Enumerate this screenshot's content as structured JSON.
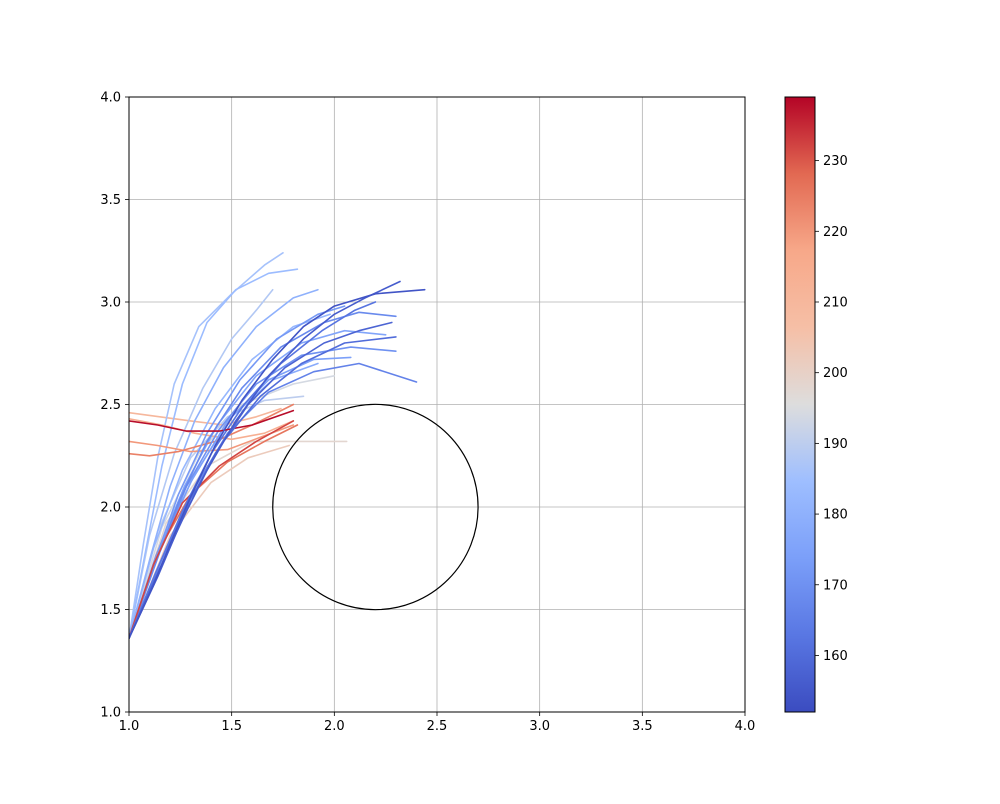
{
  "chart_data": {
    "type": "line",
    "title": "",
    "xlabel": "",
    "ylabel": "",
    "xlim": [
      1.0,
      4.0
    ],
    "ylim": [
      1.0,
      4.0
    ],
    "grid": true,
    "x_ticks": [
      "1.0",
      "1.5",
      "2.0",
      "2.5",
      "3.0",
      "3.5",
      "4.0"
    ],
    "y_ticks": [
      "1.0",
      "1.5",
      "2.0",
      "2.5",
      "3.0",
      "3.5",
      "4.0"
    ],
    "colorbar": {
      "colormap": "coolwarm",
      "range": [
        152,
        239
      ],
      "ticks": [
        "160",
        "170",
        "180",
        "190",
        "200",
        "210",
        "220",
        "230"
      ],
      "low_color": "#3b4cc0",
      "mid_color": "#dddddd",
      "high_color": "#b40426"
    },
    "obstacle": {
      "shape": "circle",
      "center": [
        2.2,
        2.0
      ],
      "radius": 0.5,
      "color": "#000000"
    },
    "series": [
      {
        "value": 154,
        "points": [
          [
            1.0,
            1.36
          ],
          [
            1.12,
            1.62
          ],
          [
            1.2,
            1.82
          ],
          [
            1.3,
            2.05
          ],
          [
            1.42,
            2.3
          ],
          [
            1.55,
            2.52
          ],
          [
            1.7,
            2.72
          ],
          [
            1.85,
            2.88
          ],
          [
            2.0,
            2.98
          ],
          [
            2.2,
            3.04
          ],
          [
            2.44,
            3.06
          ]
        ]
      },
      {
        "value": 156,
        "points": [
          [
            1.0,
            1.36
          ],
          [
            1.14,
            1.66
          ],
          [
            1.25,
            1.92
          ],
          [
            1.38,
            2.18
          ],
          [
            1.52,
            2.42
          ],
          [
            1.68,
            2.64
          ],
          [
            1.85,
            2.82
          ],
          [
            2.0,
            2.94
          ],
          [
            2.15,
            3.02
          ],
          [
            2.32,
            3.1
          ]
        ]
      },
      {
        "value": 158,
        "points": [
          [
            1.0,
            1.36
          ],
          [
            1.15,
            1.7
          ],
          [
            1.28,
            1.98
          ],
          [
            1.42,
            2.26
          ],
          [
            1.58,
            2.5
          ],
          [
            1.76,
            2.68
          ],
          [
            1.95,
            2.8
          ],
          [
            2.12,
            2.86
          ],
          [
            2.28,
            2.9
          ]
        ]
      },
      {
        "value": 160,
        "points": [
          [
            1.0,
            1.36
          ],
          [
            1.16,
            1.72
          ],
          [
            1.3,
            2.04
          ],
          [
            1.46,
            2.32
          ],
          [
            1.64,
            2.54
          ],
          [
            1.84,
            2.7
          ],
          [
            2.05,
            2.8
          ],
          [
            2.3,
            2.83
          ]
        ]
      },
      {
        "value": 162,
        "points": [
          [
            1.0,
            1.36
          ],
          [
            1.13,
            1.68
          ],
          [
            1.26,
            1.98
          ],
          [
            1.4,
            2.26
          ],
          [
            1.56,
            2.5
          ],
          [
            1.74,
            2.7
          ],
          [
            1.94,
            2.86
          ],
          [
            2.1,
            2.96
          ],
          [
            2.2,
            3.0
          ]
        ]
      },
      {
        "value": 166,
        "points": [
          [
            1.0,
            1.36
          ],
          [
            1.15,
            1.72
          ],
          [
            1.3,
            2.06
          ],
          [
            1.48,
            2.36
          ],
          [
            1.68,
            2.56
          ],
          [
            1.9,
            2.66
          ],
          [
            2.12,
            2.7
          ],
          [
            2.4,
            2.61
          ]
        ]
      },
      {
        "value": 168,
        "points": [
          [
            1.0,
            1.36
          ],
          [
            1.12,
            1.7
          ],
          [
            1.24,
            2.02
          ],
          [
            1.38,
            2.32
          ],
          [
            1.55,
            2.58
          ],
          [
            1.74,
            2.78
          ],
          [
            1.95,
            2.9
          ],
          [
            2.12,
            2.95
          ],
          [
            2.3,
            2.93
          ]
        ]
      },
      {
        "value": 170,
        "points": [
          [
            1.0,
            1.36
          ],
          [
            1.14,
            1.76
          ],
          [
            1.28,
            2.1
          ],
          [
            1.44,
            2.38
          ],
          [
            1.62,
            2.6
          ],
          [
            1.84,
            2.74
          ],
          [
            2.08,
            2.78
          ],
          [
            2.3,
            2.76
          ]
        ]
      },
      {
        "value": 172,
        "points": [
          [
            1.0,
            1.36
          ],
          [
            1.12,
            1.72
          ],
          [
            1.24,
            2.06
          ],
          [
            1.38,
            2.36
          ],
          [
            1.54,
            2.62
          ],
          [
            1.72,
            2.82
          ],
          [
            1.92,
            2.94
          ],
          [
            2.05,
            2.98
          ]
        ]
      },
      {
        "value": 174,
        "points": [
          [
            1.0,
            1.36
          ],
          [
            1.15,
            1.78
          ],
          [
            1.3,
            2.12
          ],
          [
            1.48,
            2.42
          ],
          [
            1.68,
            2.62
          ],
          [
            1.9,
            2.72
          ],
          [
            2.08,
            2.73
          ]
        ]
      },
      {
        "value": 176,
        "points": [
          [
            1.0,
            1.36
          ],
          [
            1.13,
            1.76
          ],
          [
            1.27,
            2.1
          ],
          [
            1.43,
            2.4
          ],
          [
            1.62,
            2.64
          ],
          [
            1.84,
            2.8
          ],
          [
            2.05,
            2.86
          ],
          [
            2.25,
            2.84
          ]
        ]
      },
      {
        "value": 178,
        "points": [
          [
            1.0,
            1.36
          ],
          [
            1.16,
            1.82
          ],
          [
            1.32,
            2.16
          ],
          [
            1.5,
            2.44
          ],
          [
            1.7,
            2.62
          ],
          [
            1.92,
            2.7
          ]
        ]
      },
      {
        "value": 180,
        "points": [
          [
            1.0,
            1.36
          ],
          [
            1.1,
            1.74
          ],
          [
            1.2,
            2.1
          ],
          [
            1.32,
            2.42
          ],
          [
            1.46,
            2.68
          ],
          [
            1.62,
            2.88
          ],
          [
            1.8,
            3.02
          ],
          [
            1.92,
            3.06
          ]
        ]
      },
      {
        "value": 182,
        "points": [
          [
            1.0,
            1.36
          ],
          [
            1.12,
            1.8
          ],
          [
            1.26,
            2.18
          ],
          [
            1.42,
            2.48
          ],
          [
            1.6,
            2.72
          ],
          [
            1.8,
            2.88
          ],
          [
            1.98,
            2.94
          ]
        ]
      },
      {
        "value": 184,
        "points": [
          [
            1.0,
            1.36
          ],
          [
            1.08,
            1.78
          ],
          [
            1.16,
            2.2
          ],
          [
            1.26,
            2.6
          ],
          [
            1.38,
            2.9
          ],
          [
            1.52,
            3.06
          ],
          [
            1.68,
            3.14
          ],
          [
            1.82,
            3.16
          ]
        ]
      },
      {
        "value": 186,
        "points": [
          [
            1.0,
            1.36
          ],
          [
            1.07,
            1.82
          ],
          [
            1.14,
            2.24
          ],
          [
            1.22,
            2.6
          ],
          [
            1.34,
            2.88
          ],
          [
            1.5,
            3.04
          ],
          [
            1.66,
            3.18
          ],
          [
            1.75,
            3.24
          ]
        ]
      },
      {
        "value": 188,
        "points": [
          [
            1.0,
            1.36
          ],
          [
            1.1,
            1.86
          ],
          [
            1.22,
            2.26
          ],
          [
            1.36,
            2.58
          ],
          [
            1.5,
            2.82
          ],
          [
            1.62,
            2.96
          ],
          [
            1.7,
            3.06
          ]
        ]
      },
      {
        "value": 190,
        "points": [
          [
            1.0,
            1.36
          ],
          [
            1.14,
            1.88
          ],
          [
            1.3,
            2.24
          ],
          [
            1.48,
            2.44
          ],
          [
            1.66,
            2.52
          ],
          [
            1.85,
            2.54
          ]
        ]
      },
      {
        "value": 194,
        "points": [
          [
            1.0,
            1.36
          ],
          [
            1.16,
            1.9
          ],
          [
            1.34,
            2.26
          ],
          [
            1.55,
            2.5
          ],
          [
            1.8,
            2.6
          ],
          [
            2.0,
            2.64
          ]
        ]
      },
      {
        "value": 198,
        "points": [
          [
            1.0,
            1.36
          ],
          [
            1.18,
            1.92
          ],
          [
            1.38,
            2.2
          ],
          [
            1.6,
            2.32
          ],
          [
            1.85,
            2.32
          ],
          [
            2.06,
            2.32
          ]
        ]
      },
      {
        "value": 202,
        "points": [
          [
            1.0,
            1.36
          ],
          [
            1.2,
            1.86
          ],
          [
            1.4,
            2.12
          ],
          [
            1.58,
            2.24
          ],
          [
            1.78,
            2.3
          ]
        ]
      },
      {
        "value": 210,
        "points": [
          [
            1.0,
            2.46
          ],
          [
            1.15,
            2.44
          ],
          [
            1.3,
            2.42
          ],
          [
            1.46,
            2.4
          ],
          [
            1.62,
            2.44
          ],
          [
            1.74,
            2.48
          ]
        ]
      },
      {
        "value": 214,
        "points": [
          [
            1.0,
            2.43
          ],
          [
            1.16,
            2.4
          ],
          [
            1.32,
            2.36
          ],
          [
            1.5,
            2.33
          ],
          [
            1.66,
            2.36
          ],
          [
            1.8,
            2.42
          ]
        ]
      },
      {
        "value": 220,
        "points": [
          [
            1.0,
            2.32
          ],
          [
            1.14,
            2.3
          ],
          [
            1.3,
            2.27
          ],
          [
            1.48,
            2.28
          ],
          [
            1.64,
            2.34
          ],
          [
            1.8,
            2.4
          ]
        ]
      },
      {
        "value": 224,
        "points": [
          [
            1.0,
            2.26
          ],
          [
            1.1,
            2.25
          ],
          [
            1.24,
            2.27
          ],
          [
            1.42,
            2.32
          ],
          [
            1.6,
            2.4
          ],
          [
            1.8,
            2.5
          ]
        ]
      },
      {
        "value": 226,
        "points": [
          [
            1.0,
            1.36
          ],
          [
            1.14,
            1.78
          ],
          [
            1.3,
            2.06
          ],
          [
            1.48,
            2.22
          ],
          [
            1.66,
            2.32
          ],
          [
            1.82,
            2.4
          ]
        ]
      },
      {
        "value": 232,
        "points": [
          [
            1.0,
            1.36
          ],
          [
            1.12,
            1.72
          ],
          [
            1.26,
            2.02
          ],
          [
            1.44,
            2.2
          ],
          [
            1.62,
            2.32
          ],
          [
            1.8,
            2.42
          ]
        ]
      },
      {
        "value": 238,
        "points": [
          [
            1.0,
            2.42
          ],
          [
            1.14,
            2.4
          ],
          [
            1.28,
            2.37
          ],
          [
            1.44,
            2.37
          ],
          [
            1.6,
            2.4
          ],
          [
            1.8,
            2.47
          ]
        ]
      }
    ]
  }
}
